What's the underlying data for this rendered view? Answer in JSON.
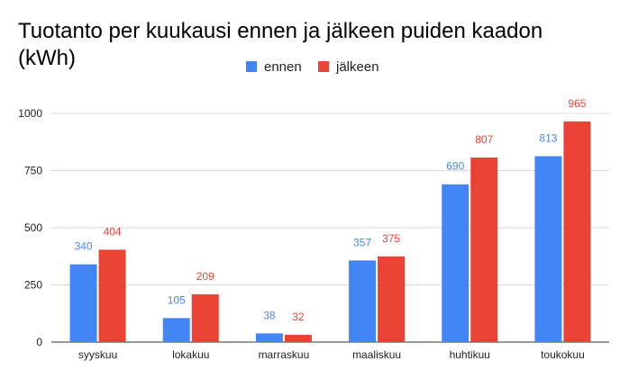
{
  "chart_data": {
    "type": "bar",
    "title": "Tuotanto per kuukausi ennen ja jälkeen puiden kaadon (kWh)",
    "xlabel": "",
    "ylabel": "",
    "categories": [
      "syyskuu",
      "lokakuu",
      "marraskuu",
      "maaliskuu",
      "huhtikuu",
      "toukokuu"
    ],
    "series": [
      {
        "name": "ennen",
        "color": "#4285F4",
        "values": [
          340,
          105,
          38,
          357,
          690,
          813
        ]
      },
      {
        "name": "jälkeen",
        "color": "#EA4335",
        "values": [
          404,
          209,
          32,
          375,
          807,
          965
        ]
      }
    ],
    "ylim": [
      0,
      1000
    ],
    "yticks": [
      0,
      250,
      500,
      750,
      1000
    ],
    "grid": true,
    "legend_position": "top-center",
    "data_labels": true
  }
}
